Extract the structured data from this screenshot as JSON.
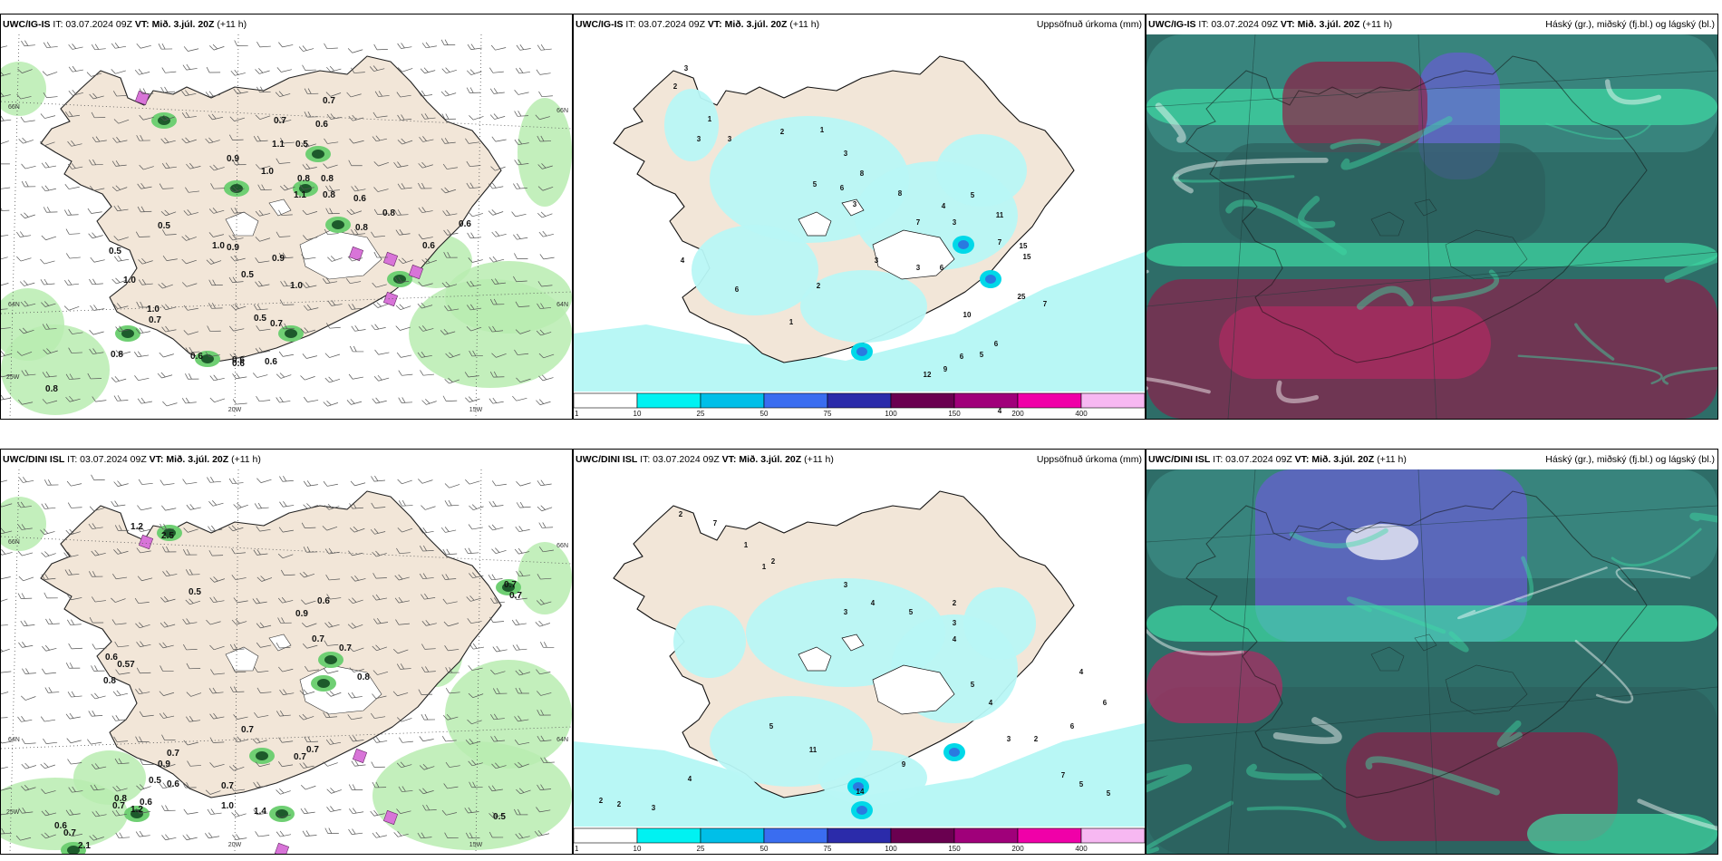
{
  "rows": [
    {
      "model": "UWC/IG-IS",
      "it_label": "IT: 03.07.2024 09Z",
      "vt_label": "VT: Mið. 3.júl. 20Z",
      "lead": "(+11 h)",
      "wind_values": [
        "0.7",
        "0.6",
        "0.7",
        "1.1",
        "0.5",
        "0.9",
        "1.0",
        "0.8",
        "0.8",
        "0.8",
        "0.6",
        "0.8",
        "0.5",
        "0.5",
        "1.0",
        "0.9",
        "0.9",
        "0.5",
        "1.0",
        "1.0",
        "0.8",
        "0.6",
        "0.6",
        "0.6",
        "0.7",
        "0.5",
        "0.7",
        "0.6",
        "0.6",
        "1.0",
        "0.8",
        "0.6",
        "0.8",
        "1.1"
      ],
      "precip_values": [
        "3",
        "2",
        "1",
        "3",
        "3",
        "2",
        "1",
        "3",
        "8",
        "6",
        "5",
        "3",
        "8",
        "7",
        "3",
        "5",
        "4",
        "6",
        "11",
        "7",
        "15",
        "25",
        "15",
        "7",
        "6",
        "6",
        "12",
        "10",
        "9",
        "4",
        "5",
        "3",
        "3",
        "2",
        "1",
        "6",
        "4"
      ],
      "axis_labels": [
        "20W",
        "15W",
        "66N",
        "64N",
        "25W",
        "66N",
        "64N"
      ]
    },
    {
      "model": "UWC/DINI ISL",
      "it_label": "IT: 03.07.2024 09Z",
      "vt_label": "VT: Mið. 3.júl. 20Z",
      "lead": "(+11 h)",
      "wind_values": [
        "1.2",
        "2.5",
        "0.5",
        "0.6",
        "0.9",
        "0.7",
        "0.7",
        "0.8",
        "0.6",
        "0.57",
        "0.8",
        "0.7",
        "0.7",
        "0.7",
        "0.9",
        "0.7",
        "0.7",
        "0.6",
        "0.5",
        "0.7",
        "0.6",
        "0.6",
        "0.7",
        "1.0",
        "1.4",
        "0.8",
        "1.2",
        "0.7",
        "0.7",
        "2.1",
        "0.5"
      ],
      "precip_values": [
        "2",
        "7",
        "1",
        "1",
        "2",
        "3",
        "4",
        "3",
        "5",
        "2",
        "4",
        "11",
        "14",
        "9",
        "3",
        "5",
        "4",
        "3",
        "2",
        "7",
        "6",
        "5",
        "5",
        "6",
        "4",
        "2",
        "2",
        "3",
        "4",
        "5"
      ],
      "axis_labels": [
        "20W",
        "15W",
        "66N",
        "64N",
        "25W",
        "66N",
        "64N"
      ]
    }
  ],
  "precip_panel": {
    "title": "Uppsöfnuð úrkoma (mm)",
    "colorbar": {
      "ticks": [
        "1",
        "10",
        "25",
        "50",
        "75",
        "100",
        "150",
        "200",
        "400"
      ],
      "colors": [
        "#ffffff",
        "#00f2f2",
        "#00bfe8",
        "#3a6df0",
        "#2b2baa",
        "#6a0050",
        "#a0007a",
        "#f000a8",
        "#f7b8f2"
      ]
    }
  },
  "cloud_panel": {
    "title": "Háský (gr.), miðský (fj.bl.) og lágský (bl.)"
  },
  "colors": {
    "land": "#f2e6d8",
    "precip_light": "#b8f7f5",
    "wind_green": "#b9ecb0",
    "wind_dark": "#1d5a2b",
    "thunder": "#d874d8",
    "cloud_low": "#2e6d68",
    "cloud_mid": "#6a5cd4",
    "cloud_high": "#3fdca4",
    "cloud_deep": "#8c1f4a"
  }
}
